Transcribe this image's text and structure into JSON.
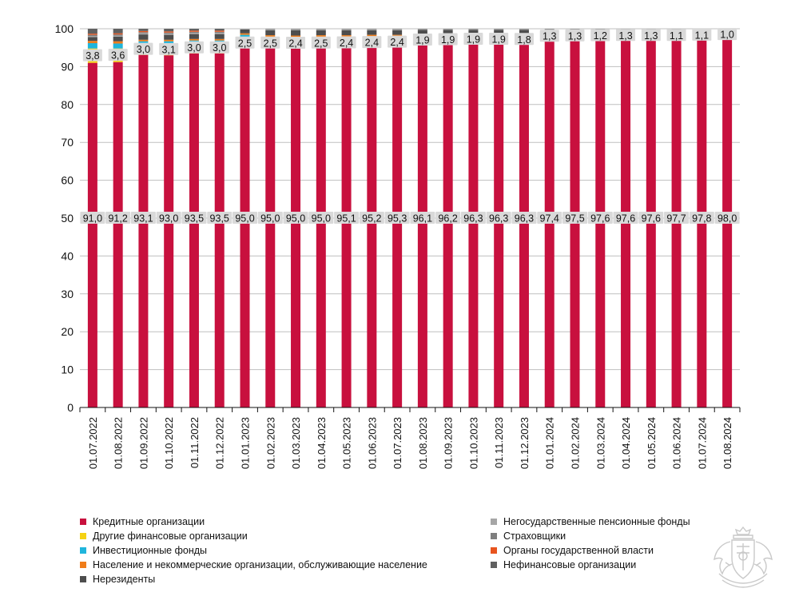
{
  "chart_data": {
    "type": "bar",
    "stacked": true,
    "categories": [
      "01.07.2022",
      "01.08.2022",
      "01.09.2022",
      "01.10.2022",
      "01.11.2022",
      "01.12.2022",
      "01.01.2023",
      "01.02.2023",
      "01.03.2023",
      "01.04.2023",
      "01.05.2023",
      "01.06.2023",
      "01.07.2023",
      "01.08.2023",
      "01.09.2023",
      "01.10.2023",
      "01.11.2023",
      "01.12.2023",
      "01.01.2024",
      "01.02.2024",
      "01.03.2024",
      "01.04.2024",
      "01.05.2024",
      "01.06.2024",
      "01.07.2024",
      "01.08.2024"
    ],
    "ylim": [
      0,
      100
    ],
    "yticks": [
      0,
      10,
      20,
      30,
      40,
      50,
      60,
      70,
      80,
      90,
      100
    ],
    "grid": true,
    "series": [
      {
        "name": "Кредитные организации",
        "color": "#C8103E",
        "values": [
          91.0,
          91.2,
          93.1,
          93.0,
          93.5,
          93.5,
          95.0,
          95.0,
          95.0,
          95.0,
          95.1,
          95.2,
          95.3,
          96.1,
          96.2,
          96.3,
          96.3,
          96.3,
          97.4,
          97.5,
          97.6,
          97.6,
          97.6,
          97.7,
          97.8,
          98.0
        ],
        "labels": [
          "91,0",
          "91,2",
          "93,1",
          "93,0",
          "93,5",
          "93,5",
          "95,0",
          "95,0",
          "95,0",
          "95,0",
          "95,1",
          "95,2",
          "95,3",
          "96,1",
          "96,2",
          "96,3",
          "96,3",
          "96,3",
          "97,4",
          "97,5",
          "97,6",
          "97,6",
          "97,6",
          "97,7",
          "97,8",
          "98,0"
        ]
      },
      {
        "name": "Другие финансовые организации",
        "color": "#F5D214",
        "values": [
          3.8,
          3.6,
          3.0,
          3.1,
          3.0,
          3.0,
          2.5,
          2.5,
          2.4,
          2.5,
          2.4,
          2.4,
          2.4,
          1.9,
          1.9,
          1.9,
          1.9,
          1.8,
          1.3,
          1.3,
          1.2,
          1.3,
          1.3,
          1.1,
          1.1,
          1.0
        ],
        "labels": [
          "3,8",
          "3,6",
          "3,0",
          "3,1",
          "3,0",
          "3,0",
          "2,5",
          "2,5",
          "2,4",
          "2,5",
          "2,4",
          "2,4",
          "2,4",
          "1,9",
          "1,9",
          "1,9",
          "1,9",
          "1,8",
          "1,3",
          "1,3",
          "1,2",
          "1,3",
          "1,3",
          "1,1",
          "1,1",
          "1,0"
        ]
      },
      {
        "name": "Инвестиционные фонды",
        "color": "#1FB5DC",
        "values": [
          1.4,
          1.3,
          0.6,
          0.6,
          0.4,
          0.4,
          0.9,
          0.2,
          0.2,
          0.2,
          0.2,
          0.2,
          0.1,
          0.1,
          0.1,
          0.1,
          0.1,
          0.1,
          0.1,
          0.1,
          0.1,
          0.1,
          0.1,
          0.1,
          0.1,
          0.1
        ]
      },
      {
        "name": "Население и некоммерческие организации, обслуживающие население",
        "color": "#F07D1A",
        "values": [
          0.6,
          0.6,
          0.4,
          0.4,
          0.4,
          0.4,
          0.4,
          0.6,
          0.6,
          0.6,
          0.6,
          0.6,
          0.6,
          0.4,
          0.4,
          0.3,
          0.3,
          0.3,
          0.3,
          0.3,
          0.3,
          0.3,
          0.3,
          0.3,
          0.3,
          0.3
        ]
      },
      {
        "name": "Нерезиденты",
        "color": "#4D4D4D",
        "values": [
          1.0,
          1.2,
          1.4,
          1.3,
          1.3,
          1.3,
          1.0,
          1.3,
          1.4,
          1.3,
          1.3,
          1.2,
          1.2,
          1.2,
          1.1,
          1.1,
          1.1,
          1.2,
          0.6,
          0.5,
          0.5,
          0.4,
          0.4,
          0.5,
          0.4,
          0.3
        ]
      },
      {
        "name": "Негосударственные пенсионные фонды",
        "color": "#A6A6A6",
        "values": [
          0.3,
          0.3,
          0.3,
          0.3,
          0.3,
          0.3,
          0.2,
          0.3,
          0.3,
          0.3,
          0.3,
          0.3,
          0.3,
          0.2,
          0.2,
          0.2,
          0.2,
          0.2,
          0.2,
          0.2,
          0.2,
          0.2,
          0.2,
          0.2,
          0.2,
          0.2
        ]
      },
      {
        "name": "Страховщики",
        "color": "#7F7F7F",
        "values": [
          0.3,
          0.3,
          0.3,
          0.3,
          0.3,
          0.3,
          0.2,
          0.3,
          0.3,
          0.3,
          0.3,
          0.3,
          0.3,
          0.2,
          0.2,
          0.2,
          0.2,
          0.2,
          0.2,
          0.2,
          0.2,
          0.2,
          0.2,
          0.2,
          0.2,
          0.2
        ]
      },
      {
        "name": "Органы государственной власти",
        "color": "#E8541E",
        "values": [
          0.3,
          0.3,
          0.3,
          0.3,
          0.3,
          0.3,
          0.2,
          0.2,
          0.2,
          0.2,
          0.2,
          0.2,
          0.2,
          0.1,
          0.1,
          0.1,
          0.1,
          0.1,
          0.1,
          0.1,
          0.1,
          0.1,
          0.1,
          0.1,
          0.1,
          0.1
        ]
      },
      {
        "name": "Нефинансовые организации",
        "color": "#606060",
        "values": [
          1.3,
          1.2,
          0.9,
          1.0,
          0.8,
          0.8,
          0.5,
          0.6,
          0.6,
          0.6,
          0.6,
          0.6,
          0.6,
          0.6,
          0.6,
          0.6,
          0.6,
          0.6,
          0.6,
          0.6,
          0.6,
          0.6,
          0.6,
          0.6,
          0.6,
          0.6
        ]
      }
    ],
    "legend": {
      "position": "bottom",
      "left": [
        "Кредитные организации",
        "Другие финансовые организации",
        "Инвестиционные фонды",
        "Население и некоммерческие организации, обслуживающие население",
        "Нерезиденты"
      ],
      "right": [
        "Негосударственные пенсионные фонды",
        "Страховщики",
        "Органы государственной власти",
        "Нефинансовые организации"
      ]
    },
    "colors": {
      "grid": "#BFBFBF",
      "axis": "#111111",
      "label_bg": "#D9D9D9"
    }
  },
  "logo": {
    "icon": "coat-of-arms-icon"
  }
}
